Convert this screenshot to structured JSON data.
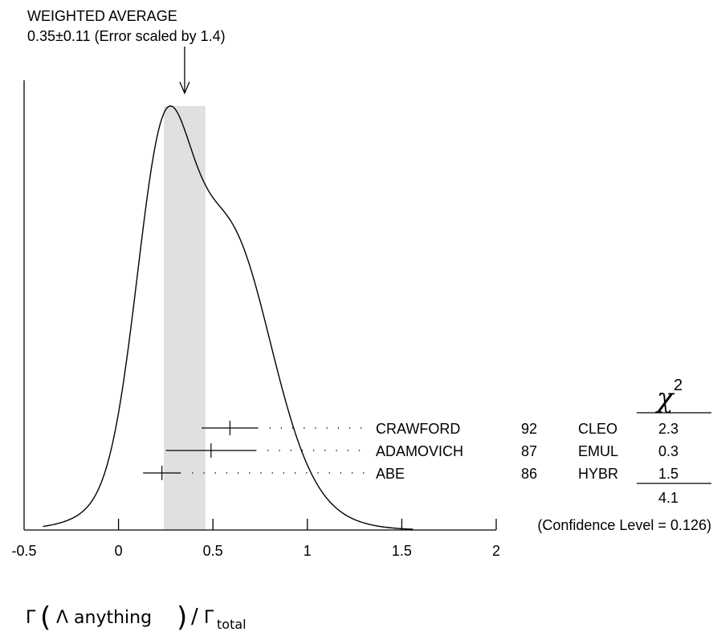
{
  "chart_data": {
    "type": "ideogram",
    "title": "WEIGHTED AVERAGE",
    "subtitle": "0.35±0.11 (Error scaled by 1.4)",
    "weighted_average": 0.35,
    "weighted_error": 0.11,
    "band": [
      0.24,
      0.46
    ],
    "xlim": [
      -0.5,
      2
    ],
    "x_ticks": [
      -0.5,
      0,
      0.5,
      1,
      1.5,
      2
    ],
    "x_tick_labels": [
      "-0.5",
      "0",
      "0.5",
      "1",
      "1.5",
      "2"
    ],
    "xlabel_parts": {
      "gamma": "Γ",
      "particle": "Λ anything",
      "slash": "/",
      "total_sub": "total"
    },
    "measurements": [
      {
        "author": "CRAWFORD",
        "year": "92",
        "tech": "CLEO",
        "value": 0.59,
        "err": 0.15,
        "chi2": "2.3"
      },
      {
        "author": "ADAMOVICH",
        "year": "87",
        "tech": "EMUL",
        "value": 0.49,
        "err": 0.24,
        "chi2": "0.3"
      },
      {
        "author": "ABE",
        "year": "86",
        "tech": "HYBR",
        "value": 0.23,
        "err": 0.1,
        "chi2": "1.5"
      }
    ],
    "chi2_header": "χ",
    "chi2_power": "2",
    "chi2_total": "4.1",
    "confidence_level": "(Confidence Level = 0.126)"
  }
}
